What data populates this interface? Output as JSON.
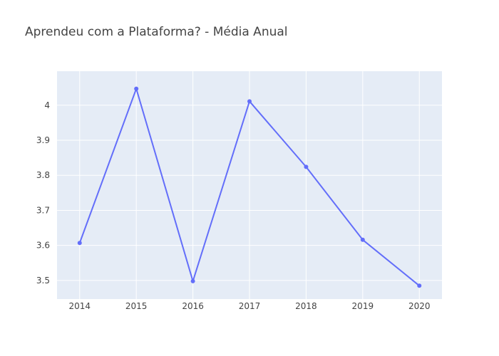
{
  "chart_data": {
    "type": "line",
    "title": "Aprendeu com a Plataforma?  - Média Anual",
    "xlabel": "",
    "ylabel": "",
    "x": [
      2014,
      2015,
      2016,
      2017,
      2018,
      2019,
      2020
    ],
    "series": [
      {
        "values": [
          3.607,
          4.047,
          3.498,
          4.011,
          3.824,
          3.616,
          3.485
        ]
      }
    ],
    "x_ticks": [
      "2014",
      "2015",
      "2016",
      "2017",
      "2018",
      "2019",
      "2020"
    ],
    "y_ticks": [
      3.5,
      3.6,
      3.7,
      3.8,
      3.9,
      4
    ],
    "y_tick_labels": [
      "3.5",
      "3.6",
      "3.7",
      "3.8",
      "3.9",
      "4"
    ],
    "xlim": [
      2013.6,
      2020.4
    ],
    "ylim": [
      3.447,
      4.097
    ],
    "grid": true,
    "legend": "none",
    "colors": {
      "line": "#636efa",
      "plot_bg": "#e5ecf6",
      "grid": "#ffffff",
      "text": "#444444"
    }
  }
}
